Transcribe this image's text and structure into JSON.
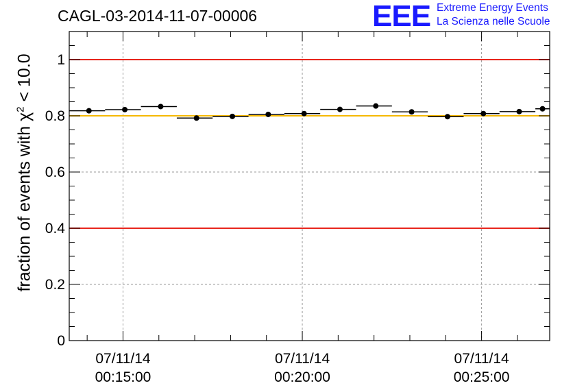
{
  "title": "CAGL-03-2014-11-07-00006",
  "logo": {
    "mark": "EEE",
    "line1": "Extreme Energy Events",
    "line2": "La Scienza nelle Scuole",
    "color": "#1a1aff"
  },
  "chart_data": {
    "type": "scatter",
    "title": "CAGL-03-2014-11-07-00006",
    "ylabel": "fraction of events with χ² < 10.0",
    "ylabel_parts": {
      "before": "fraction of events with ",
      "symbol": "χ",
      "sup": "2",
      "after": " < 10.0"
    },
    "xlabel": "",
    "ylim": [
      0,
      1.1
    ],
    "y_ticks": [
      {
        "value": 0,
        "label": "0"
      },
      {
        "value": 0.2,
        "label": "0.2"
      },
      {
        "value": 0.4,
        "label": "0.4"
      },
      {
        "value": 0.6,
        "label": "0.6"
      },
      {
        "value": 0.8,
        "label": "0.8"
      },
      {
        "value": 1,
        "label": "1"
      }
    ],
    "xlim_minutes": [
      13.5,
      26.9
    ],
    "x_ticks": [
      {
        "minute": 15,
        "date": "07/11/14",
        "time": "00:15:00"
      },
      {
        "minute": 20,
        "date": "07/11/14",
        "time": "00:20:00"
      },
      {
        "minute": 25,
        "date": "07/11/14",
        "time": "00:25:00"
      }
    ],
    "grid": true,
    "reference_lines": [
      {
        "y": 1.0,
        "color": "#e8251c"
      },
      {
        "y": 0.4,
        "color": "#e8251c"
      },
      {
        "y": 0.8,
        "color": "#f5b800"
      }
    ],
    "series": [
      {
        "x_start_minutes": [
          13.5,
          14.5,
          15.5,
          16.5,
          17.5,
          18.5,
          19.5,
          20.5,
          21.5,
          22.5,
          23.5,
          24.5,
          25.5,
          26.5
        ],
        "x_end_minutes": [
          14.5,
          15.5,
          16.5,
          17.5,
          18.5,
          19.5,
          20.5,
          21.5,
          22.5,
          23.5,
          24.5,
          25.5,
          26.5,
          26.9
        ],
        "x_center_minutes": [
          14.05,
          15.05,
          16.05,
          17.05,
          18.05,
          19.05,
          20.05,
          21.05,
          22.05,
          23.05,
          24.05,
          25.05,
          26.05,
          26.7
        ],
        "values": [
          0.818,
          0.822,
          0.833,
          0.792,
          0.798,
          0.805,
          0.808,
          0.823,
          0.835,
          0.814,
          0.797,
          0.808,
          0.815,
          0.825
        ],
        "error": 0.006,
        "color": "#000000"
      }
    ]
  }
}
